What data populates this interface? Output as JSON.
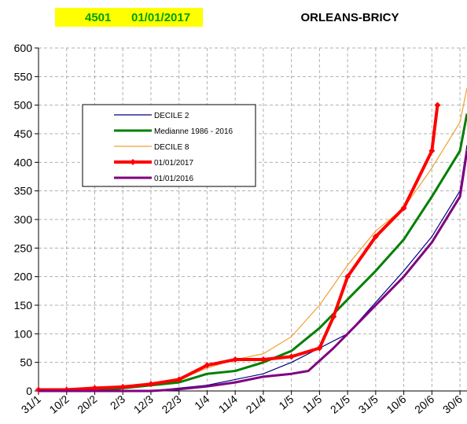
{
  "chart_data": {
    "type": "line",
    "header_code": "4501",
    "header_date": "01/01/2017",
    "title": "ORLEANS-BRICY",
    "xlim": [
      0,
      152.5
    ],
    "ylim": [
      0,
      600
    ],
    "xticks": [
      {
        "value": 0,
        "label": "31/1"
      },
      {
        "value": 10,
        "label": "10/2"
      },
      {
        "value": 20,
        "label": "20/2"
      },
      {
        "value": 30,
        "label": "2/3"
      },
      {
        "value": 40,
        "label": "12/3"
      },
      {
        "value": 50,
        "label": "22/3"
      },
      {
        "value": 60,
        "label": "1/4"
      },
      {
        "value": 70,
        "label": "11/4"
      },
      {
        "value": 80,
        "label": "21/4"
      },
      {
        "value": 90,
        "label": "1/5"
      },
      {
        "value": 100,
        "label": "11/5"
      },
      {
        "value": 110,
        "label": "21/5"
      },
      {
        "value": 120,
        "label": "31/5"
      },
      {
        "value": 130,
        "label": "10/6"
      },
      {
        "value": 140,
        "label": "20/6"
      },
      {
        "value": 150,
        "label": "30/6"
      }
    ],
    "yticks": [
      0,
      50,
      100,
      150,
      200,
      250,
      300,
      350,
      400,
      450,
      500,
      550,
      600
    ],
    "grid": true,
    "legend": "upper left",
    "series": [
      {
        "name": "DECILE 2",
        "color": "#000080",
        "width": 1.2,
        "x": [
          0,
          40,
          50,
          60,
          70,
          80,
          90,
          100,
          110,
          120,
          130,
          140,
          150,
          152.5
        ],
        "values": [
          0,
          0,
          5,
          10,
          20,
          30,
          50,
          75,
          100,
          155,
          210,
          270,
          350,
          430
        ]
      },
      {
        "name": "Medianne 1986 - 2016",
        "color": "#008000",
        "width": 3,
        "x": [
          0,
          20,
          30,
          40,
          50,
          60,
          70,
          80,
          90,
          100,
          110,
          120,
          130,
          140,
          150,
          152.5
        ],
        "values": [
          0,
          0,
          5,
          10,
          15,
          30,
          35,
          50,
          70,
          110,
          160,
          210,
          265,
          340,
          420,
          485
        ]
      },
      {
        "name": "DECILE 8",
        "color": "#f0a030",
        "width": 1.2,
        "x": [
          0,
          10,
          20,
          30,
          40,
          50,
          60,
          70,
          80,
          90,
          100,
          110,
          120,
          130,
          140,
          150,
          152.5
        ],
        "values": [
          0,
          3,
          5,
          8,
          12,
          20,
          40,
          55,
          65,
          95,
          150,
          220,
          280,
          320,
          390,
          470,
          530
        ]
      },
      {
        "name": "01/01/2017",
        "color": "#ff0000",
        "width": 4,
        "marker": "diamond",
        "x": [
          0,
          10,
          20,
          30,
          40,
          50,
          60,
          70,
          80,
          90,
          100,
          105,
          110,
          120,
          130,
          140,
          142
        ],
        "values": [
          2,
          2,
          5,
          7,
          12,
          20,
          45,
          55,
          55,
          60,
          75,
          130,
          200,
          270,
          320,
          420,
          500
        ]
      },
      {
        "name": "01/01/2016",
        "color": "#800080",
        "width": 3,
        "x": [
          0,
          40,
          50,
          60,
          70,
          80,
          90,
          96,
          105,
          110,
          120,
          130,
          140,
          150,
          152.5
        ],
        "values": [
          0,
          0,
          3,
          8,
          15,
          25,
          30,
          35,
          75,
          100,
          150,
          200,
          260,
          340,
          420
        ]
      }
    ]
  }
}
